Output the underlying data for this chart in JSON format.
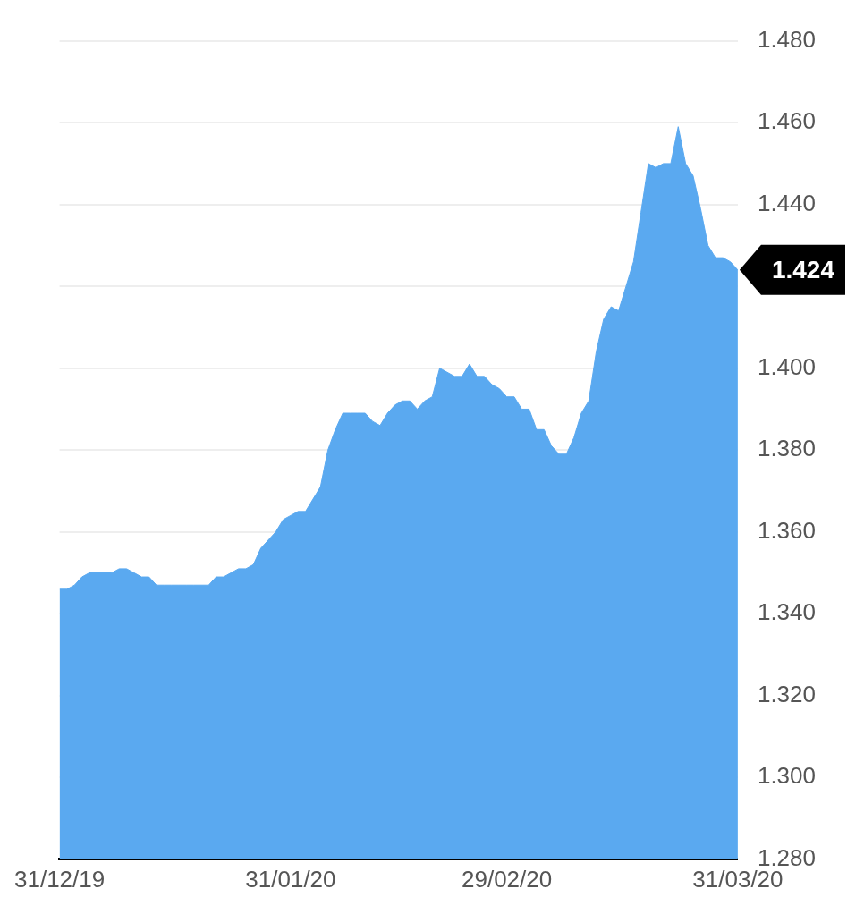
{
  "chart_data": {
    "type": "area",
    "x": [
      "2019-12-31",
      "2020-01-01",
      "2020-01-02",
      "2020-01-03",
      "2020-01-04",
      "2020-01-07",
      "2020-01-08",
      "2020-01-09",
      "2020-01-10",
      "2020-01-11",
      "2020-01-12",
      "2020-01-13",
      "2020-01-14",
      "2020-01-15",
      "2020-01-16",
      "2020-01-17",
      "2020-01-18",
      "2020-01-20",
      "2020-01-21",
      "2020-01-22",
      "2020-01-24",
      "2020-01-25",
      "2020-01-26",
      "2020-01-27",
      "2020-01-29",
      "2020-01-30",
      "2020-01-31",
      "2020-02-01",
      "2020-02-02",
      "2020-02-03",
      "2020-02-04",
      "2020-02-05",
      "2020-02-06",
      "2020-02-07",
      "2020-02-08",
      "2020-02-09",
      "2020-02-10",
      "2020-02-11",
      "2020-02-12",
      "2020-02-13",
      "2020-02-14",
      "2020-02-15",
      "2020-02-16",
      "2020-02-17",
      "2020-02-18",
      "2020-02-19",
      "2020-02-20",
      "2020-02-21",
      "2020-02-22",
      "2020-02-23",
      "2020-02-24",
      "2020-02-25",
      "2020-02-26",
      "2020-02-27",
      "2020-02-28",
      "2020-02-29",
      "2020-03-01",
      "2020-03-02",
      "2020-03-03",
      "2020-03-04",
      "2020-03-05",
      "2020-03-06",
      "2020-03-07",
      "2020-03-08",
      "2020-03-09",
      "2020-03-10",
      "2020-03-11",
      "2020-03-12",
      "2020-03-13",
      "2020-03-14",
      "2020-03-15",
      "2020-03-16",
      "2020-03-17",
      "2020-03-18",
      "2020-03-19",
      "2020-03-20",
      "2020-03-21",
      "2020-03-22",
      "2020-03-23",
      "2020-03-24",
      "2020-03-25",
      "2020-03-26",
      "2020-03-27",
      "2020-03-28",
      "2020-03-29",
      "2020-03-30",
      "2020-03-31"
    ],
    "series": [
      {
        "color": "#5aa9f0",
        "values": [
          1.346,
          1.346,
          1.347,
          1.349,
          1.35,
          1.35,
          1.351,
          1.351,
          1.35,
          1.349,
          1.349,
          1.347,
          1.347,
          1.347,
          1.347,
          1.347,
          1.347,
          1.347,
          1.349,
          1.349,
          1.351,
          1.351,
          1.352,
          1.356,
          1.36,
          1.363,
          1.364,
          1.365,
          1.365,
          1.368,
          1.371,
          1.38,
          1.385,
          1.389,
          1.389,
          1.389,
          1.389,
          1.387,
          1.386,
          1.389,
          1.391,
          1.392,
          1.392,
          1.39,
          1.392,
          1.393,
          1.4,
          1.399,
          1.398,
          1.398,
          1.401,
          1.398,
          1.398,
          1.396,
          1.395,
          1.393,
          1.393,
          1.39,
          1.39,
          1.385,
          1.385,
          1.381,
          1.379,
          1.379,
          1.383,
          1.389,
          1.392,
          1.404,
          1.412,
          1.415,
          1.414,
          1.42,
          1.426,
          1.438,
          1.45,
          1.449,
          1.45,
          1.45,
          1.459,
          1.45,
          1.447,
          1.439,
          1.43,
          1.427,
          1.427,
          1.426,
          1.424
        ]
      }
    ],
    "xlim": [
      "2019-12-31",
      "2020-03-31"
    ],
    "xticks": [
      {
        "value": "2019-12-31",
        "label": "31/12/19"
      },
      {
        "value": "2020-01-31",
        "label": "31/01/20"
      },
      {
        "value": "2020-02-29",
        "label": "29/02/20"
      },
      {
        "value": "2020-03-31",
        "label": "31/03/20"
      }
    ],
    "ylim": [
      1.28,
      1.48
    ],
    "yticks": [
      {
        "value": 1.28,
        "label": "1.280"
      },
      {
        "value": 1.3,
        "label": "1.300"
      },
      {
        "value": 1.32,
        "label": "1.320"
      },
      {
        "value": 1.34,
        "label": "1.340"
      },
      {
        "value": 1.36,
        "label": "1.360"
      },
      {
        "value": 1.38,
        "label": "1.380"
      },
      {
        "value": 1.4,
        "label": "1.400"
      },
      {
        "value": 1.42,
        "label": null
      },
      {
        "value": 1.44,
        "label": "1.440"
      },
      {
        "value": 1.46,
        "label": "1.460"
      },
      {
        "value": 1.48,
        "label": "1.480"
      }
    ],
    "grid": "y",
    "annotations": [
      {
        "text": "1.424",
        "x": "2020-03-31",
        "y": 1.424
      }
    ]
  }
}
